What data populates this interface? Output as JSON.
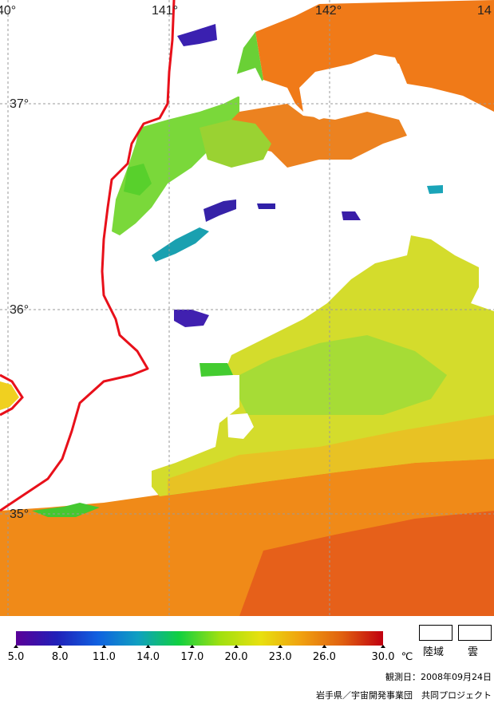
{
  "map": {
    "lat_labels": [
      "37°",
      "36°",
      "35°"
    ],
    "lon_labels": [
      "40°",
      "141°",
      "142°",
      "14"
    ],
    "colors": {
      "coast": "#e8101a",
      "cloud": "#ffffff",
      "grid": "#9a9a9a",
      "warm": "#f07a12",
      "hot": "#e05412",
      "mid": "#d8dc28",
      "cool": "#60d832",
      "cold": "#2a28a8"
    }
  },
  "colorbar": {
    "ticks": [
      "5.0",
      "8.0",
      "11.0",
      "14.0",
      "17.0",
      "20.0",
      "23.0",
      "26.0",
      "30.0"
    ],
    "tick_values": [
      5,
      8,
      11,
      14,
      17,
      20,
      23,
      26,
      30
    ],
    "unit": "℃",
    "range": [
      5,
      30
    ],
    "stops": [
      "#5a0098",
      "#2020b8",
      "#1060e0",
      "#10a0c0",
      "#10d040",
      "#a0e010",
      "#e8e010",
      "#f0a010",
      "#e06010",
      "#c00010"
    ]
  },
  "legend_boxes": {
    "land": "陸域",
    "cloud": "雲"
  },
  "observation": "観測日：2008年09月24日",
  "credit": "岩手県／宇宙開発事業団　共同プロジェクト"
}
